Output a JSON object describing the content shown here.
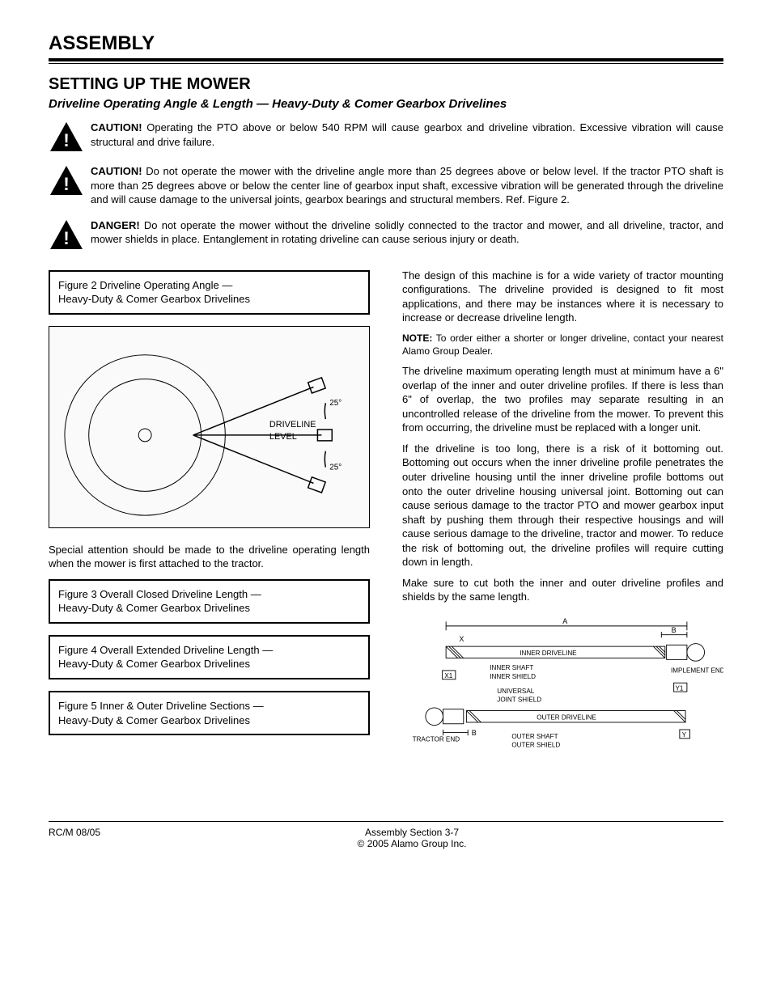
{
  "header": {
    "title": "ASSEMBLY",
    "section_heading": "SETTING UP THE MOWER",
    "sub_heading": "Driveline Operating Angle & Length — Heavy-Duty & Comer Gearbox Drivelines"
  },
  "warnings": [
    {
      "lead": "CAUTION!",
      "text": "Operating the PTO above or below 540 RPM will cause gearbox and driveline vibration. Excessive vibration will cause structural and drive failure."
    },
    {
      "lead": "CAUTION!",
      "text": "Do not operate the mower with the driveline angle more than 25 degrees above or below level. If the tractor PTO shaft is more than 25 degrees above or below the center line of gearbox input shaft, excessive vibration will be generated through the driveline and will cause damage to the universal joints, gearbox bearings and structural members. Ref. Figure 2."
    },
    {
      "lead": "DANGER!",
      "text": "Do not operate the mower without the driveline solidly connected to the tractor and mower, and all driveline, tractor, and mower shields in place. Entanglement in rotating driveline can cause serious injury or death."
    }
  ],
  "left_column": {
    "fig2_caption": "Figure 2  Driveline Operating Angle —\nHeavy-Duty & Comer Gearbox Drivelines",
    "fig2_labels": {
      "driveline": "DRIVELINE",
      "level": "LEVEL",
      "angle": "25°"
    },
    "para1": "Special attention should be made to the driveline operating length when the mower is first attached to the tractor.",
    "fig3_caption": "Figure 3  Overall Closed Driveline Length —\nHeavy-Duty & Comer Gearbox Drivelines",
    "fig4_caption": "Figure 4  Overall Extended Driveline Length —\nHeavy-Duty & Comer Gearbox Drivelines",
    "fig5_caption": "Figure 5  Inner & Outer Driveline Sections —\nHeavy-Duty & Comer Gearbox Drivelines"
  },
  "right_column": {
    "para1": "The design of this machine is for a wide variety of tractor mounting configurations. The driveline provided is designed to fit most applications, and there may be instances where it is necessary to increase or decrease driveline length.",
    "note_lead": "NOTE:",
    "note_text": "To order either a shorter or longer driveline, contact your nearest Alamo Group Dealer.",
    "para2": "The driveline maximum operating length must at minimum have a 6\" overlap of the inner and outer driveline profiles. If there is less than 6\" of overlap, the two profiles may separate resulting in an uncontrolled release of the driveline from the mower. To prevent this from occurring, the driveline must be replaced with a longer unit.",
    "para3": "If the driveline is too long, there is a risk of it bottoming out. Bottoming out occurs when the inner driveline profile penetrates the outer driveline housing until the inner driveline profile bottoms out onto the outer driveline housing universal joint. Bottoming out can cause serious damage to the tractor PTO and mower gearbox input shaft by pushing them through their respective housings and will cause serious damage to the driveline, tractor and mower. To reduce the risk of bottoming out, the driveline profiles will require cutting down in length.",
    "para4": "Make sure to cut both the inner and outer driveline profiles and shields by the same length.",
    "fig5_labels": {
      "dim_A": "A",
      "dim_B": "B",
      "dim_X": "X",
      "dim_X1": "X1",
      "dim_Y": "Y",
      "dim_Y1": "Y1",
      "inner_driveline": "INNER DRIVELINE",
      "inner_shaft": "INNER SHAFT",
      "inner_shield": "INNER SHIELD",
      "universal": "UNIVERSAL",
      "joint_shield": "JOINT SHIELD",
      "outer_driveline": "OUTER DRIVELINE",
      "outer_shaft": "OUTER SHAFT",
      "outer_shield": "OUTER SHIELD",
      "implement_end": "IMPLEMENT END",
      "tractor_end": "TRACTOR END"
    }
  },
  "footer": {
    "left": "RC/M 08/05",
    "center_top": "Assembly Section 3-7",
    "center_bottom": "© 2005 Alamo Group Inc.",
    "right": ""
  }
}
